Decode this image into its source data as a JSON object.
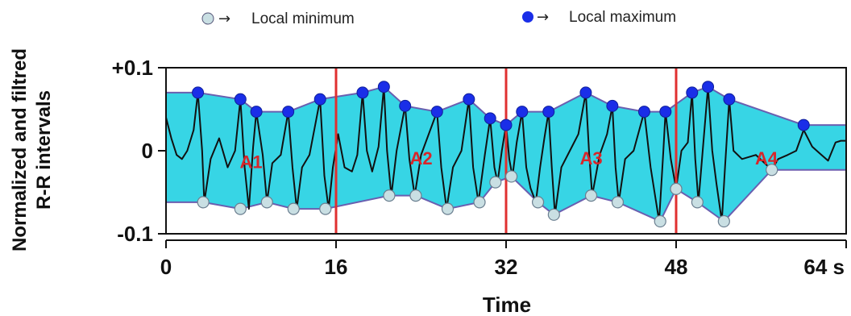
{
  "chart_data": {
    "type": "line",
    "xlabel": "Time",
    "ylabel": [
      "Normalized and filtred",
      "R-R intervals"
    ],
    "xlim": [
      0,
      64
    ],
    "ylim": [
      -0.1,
      0.1
    ],
    "x_ticks": [
      0,
      16,
      32,
      48,
      64
    ],
    "x_tick_labels": [
      "0",
      "16",
      "32",
      "48",
      "64 s"
    ],
    "y_ticks": [
      0.1,
      0,
      -0.1
    ],
    "y_tick_labels": [
      "+0.1",
      "0",
      "-0.1"
    ],
    "legend": [
      {
        "label": "Local minimum",
        "marker": "light-circle"
      },
      {
        "label": "Local maximum",
        "marker": "dark-circle"
      }
    ],
    "legend_placement": "top",
    "grid": false,
    "dividers_x": [
      16,
      32,
      48
    ],
    "regions": [
      {
        "label": "A1",
        "x": 8,
        "y": -0.012
      },
      {
        "label": "A2",
        "x": 24,
        "y": -0.008
      },
      {
        "label": "A3",
        "x": 40,
        "y": -0.008
      },
      {
        "label": "A4",
        "x": 56.5,
        "y": -0.008
      }
    ],
    "local_maxima": [
      [
        0,
        0.07
      ],
      [
        3,
        0.07
      ],
      [
        7,
        0.062
      ],
      [
        8.5,
        0.047
      ],
      [
        11.5,
        0.047
      ],
      [
        14.5,
        0.062
      ],
      [
        18.5,
        0.07
      ],
      [
        20.5,
        0.077
      ],
      [
        22.5,
        0.054
      ],
      [
        25.5,
        0.047
      ],
      [
        28.5,
        0.062
      ],
      [
        30.5,
        0.039
      ],
      [
        32,
        0.031
      ],
      [
        33.5,
        0.047
      ],
      [
        36,
        0.047
      ],
      [
        39.5,
        0.07
      ],
      [
        42,
        0.054
      ],
      [
        45,
        0.047
      ],
      [
        47,
        0.047
      ],
      [
        49.5,
        0.07
      ],
      [
        51,
        0.077
      ],
      [
        53,
        0.062
      ],
      [
        60,
        0.031
      ],
      [
        64,
        0.031
      ]
    ],
    "local_minima": [
      [
        0,
        -0.062
      ],
      [
        3.5,
        -0.062
      ],
      [
        7,
        -0.07
      ],
      [
        9.5,
        -0.062
      ],
      [
        12,
        -0.07
      ],
      [
        15,
        -0.07
      ],
      [
        21,
        -0.054
      ],
      [
        23.5,
        -0.054
      ],
      [
        26.5,
        -0.07
      ],
      [
        29.5,
        -0.062
      ],
      [
        31,
        -0.038
      ],
      [
        32.5,
        -0.031
      ],
      [
        35,
        -0.062
      ],
      [
        36.5,
        -0.077
      ],
      [
        40,
        -0.054
      ],
      [
        42.5,
        -0.062
      ],
      [
        46.5,
        -0.085
      ],
      [
        48,
        -0.046
      ],
      [
        50,
        -0.062
      ],
      [
        52.5,
        -0.085
      ],
      [
        57,
        -0.023
      ],
      [
        64,
        -0.023
      ]
    ],
    "signal": [
      [
        0,
        0.04
      ],
      [
        0.5,
        0.015
      ],
      [
        1,
        -0.005
      ],
      [
        1.5,
        -0.01
      ],
      [
        2,
        0.0
      ],
      [
        2.6,
        0.025
      ],
      [
        3,
        0.07
      ],
      [
        3.4,
        0.0
      ],
      [
        3.6,
        -0.062
      ],
      [
        4.2,
        -0.01
      ],
      [
        5,
        0.015
      ],
      [
        5.8,
        -0.02
      ],
      [
        6.5,
        0.0
      ],
      [
        7,
        0.062
      ],
      [
        7.4,
        -0.02
      ],
      [
        7.8,
        -0.07
      ],
      [
        8.2,
        0.005
      ],
      [
        8.5,
        0.047
      ],
      [
        9.1,
        -0.005
      ],
      [
        9.5,
        -0.062
      ],
      [
        10,
        -0.015
      ],
      [
        10.8,
        -0.005
      ],
      [
        11.5,
        0.047
      ],
      [
        11.9,
        -0.02
      ],
      [
        12.3,
        -0.07
      ],
      [
        12.8,
        -0.02
      ],
      [
        13.5,
        -0.005
      ],
      [
        14.5,
        0.062
      ],
      [
        14.9,
        -0.03
      ],
      [
        15.3,
        -0.07
      ],
      [
        15.7,
        -0.02
      ],
      [
        16.2,
        0.02
      ],
      [
        16.8,
        -0.02
      ],
      [
        17.5,
        -0.025
      ],
      [
        18,
        -0.005
      ],
      [
        18.5,
        0.07
      ],
      [
        18.9,
        0.0
      ],
      [
        19.4,
        -0.025
      ],
      [
        20,
        0.005
      ],
      [
        20.5,
        0.077
      ],
      [
        20.8,
        0.0
      ],
      [
        21.2,
        -0.054
      ],
      [
        21.7,
        0.0
      ],
      [
        22.5,
        0.054
      ],
      [
        22.9,
        -0.01
      ],
      [
        23.4,
        -0.054
      ],
      [
        24,
        -0.005
      ],
      [
        25.5,
        0.047
      ],
      [
        25.9,
        -0.02
      ],
      [
        26.4,
        -0.07
      ],
      [
        27,
        -0.02
      ],
      [
        27.8,
        0.0
      ],
      [
        28.5,
        0.062
      ],
      [
        28.9,
        -0.02
      ],
      [
        29.4,
        -0.062
      ],
      [
        30,
        -0.005
      ],
      [
        30.5,
        0.039
      ],
      [
        30.9,
        -0.02
      ],
      [
        31.2,
        -0.038
      ],
      [
        31.6,
        0.0
      ],
      [
        32,
        0.031
      ],
      [
        32.3,
        -0.01
      ],
      [
        32.6,
        -0.031
      ],
      [
        33,
        0.01
      ],
      [
        33.5,
        0.047
      ],
      [
        33.9,
        -0.02
      ],
      [
        34.3,
        -0.045
      ],
      [
        34.8,
        -0.062
      ],
      [
        35.2,
        -0.02
      ],
      [
        35.6,
        0.015
      ],
      [
        36,
        0.047
      ],
      [
        36.3,
        -0.02
      ],
      [
        36.6,
        -0.077
      ],
      [
        37.2,
        -0.02
      ],
      [
        38,
        0.0
      ],
      [
        38.8,
        0.02
      ],
      [
        39.5,
        0.07
      ],
      [
        39.8,
        0.0
      ],
      [
        40.1,
        -0.054
      ],
      [
        40.8,
        -0.005
      ],
      [
        41.5,
        0.02
      ],
      [
        42,
        0.054
      ],
      [
        42.3,
        -0.02
      ],
      [
        42.6,
        -0.062
      ],
      [
        43.2,
        -0.01
      ],
      [
        44,
        0.0
      ],
      [
        45,
        0.047
      ],
      [
        45.6,
        -0.02
      ],
      [
        46.4,
        -0.085
      ],
      [
        46.8,
        0.0
      ],
      [
        47,
        0.047
      ],
      [
        47.5,
        -0.01
      ],
      [
        48,
        -0.046
      ],
      [
        48.5,
        0.0
      ],
      [
        49.1,
        0.01
      ],
      [
        49.5,
        0.07
      ],
      [
        49.8,
        -0.01
      ],
      [
        50.1,
        -0.062
      ],
      [
        50.5,
        0.0
      ],
      [
        51,
        0.077
      ],
      [
        51.4,
        0.0
      ],
      [
        51.8,
        -0.04
      ],
      [
        52.3,
        -0.085
      ],
      [
        52.6,
        -0.02
      ],
      [
        53,
        0.062
      ],
      [
        53.4,
        0.0
      ],
      [
        54.2,
        -0.01
      ],
      [
        55.5,
        -0.005
      ],
      [
        57,
        -0.023
      ],
      [
        57.6,
        -0.01
      ],
      [
        58.5,
        -0.005
      ],
      [
        59.3,
        0.0
      ],
      [
        60,
        0.025
      ],
      [
        60.8,
        0.005
      ],
      [
        61.5,
        -0.003
      ],
      [
        62.3,
        -0.012
      ],
      [
        63,
        0.01
      ],
      [
        63.5,
        0.012
      ],
      [
        64,
        0.012
      ]
    ],
    "colors": {
      "envelope_fill": "#37d5e5",
      "envelope_stroke": "#6a5fb0",
      "max_marker": "#1a2ee8",
      "min_marker": "#c9dfe3",
      "divider": "#e03030",
      "signal": "#111111"
    }
  }
}
